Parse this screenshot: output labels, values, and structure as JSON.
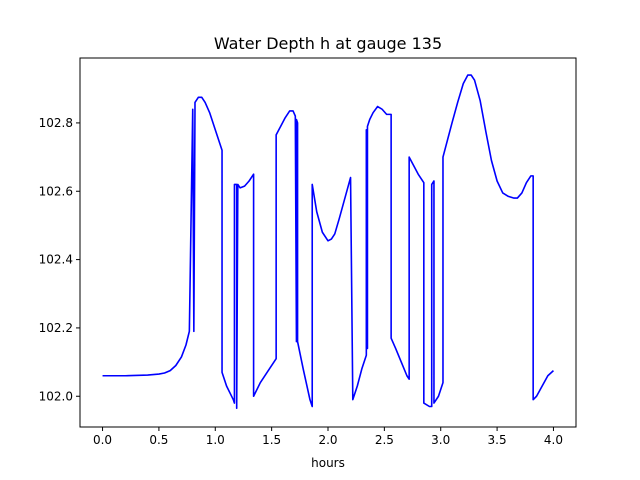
{
  "chart_data": {
    "type": "line",
    "title": "Water Depth h at gauge 135",
    "xlabel": "hours",
    "ylabel": "",
    "xlim": [
      -0.2,
      4.2
    ],
    "ylim": [
      101.91,
      102.99
    ],
    "xticks": [
      0.0,
      0.5,
      1.0,
      1.5,
      2.0,
      2.5,
      3.0,
      3.5,
      4.0
    ],
    "xtick_labels": [
      "0.0",
      "0.5",
      "1.0",
      "1.5",
      "2.0",
      "2.5",
      "3.0",
      "3.5",
      "4.0"
    ],
    "yticks": [
      102.0,
      102.2,
      102.4,
      102.6,
      102.8
    ],
    "ytick_labels": [
      "102.0",
      "102.2",
      "102.4",
      "102.6",
      "102.8"
    ],
    "grid": false,
    "line_color": "#0000ff",
    "series": [
      {
        "x": [
          0.0,
          0.2,
          0.4,
          0.5,
          0.55,
          0.6,
          0.65,
          0.7,
          0.74,
          0.77,
          0.8,
          0.81,
          0.81,
          0.82,
          0.82,
          0.85,
          0.88,
          0.91,
          0.95,
          1.0,
          1.06,
          1.06,
          1.1,
          1.16,
          1.17,
          1.17,
          1.19,
          1.19,
          1.2,
          1.22,
          1.26,
          1.3,
          1.34,
          1.34,
          1.4,
          1.46,
          1.54,
          1.54,
          1.58,
          1.62,
          1.66,
          1.69,
          1.71,
          1.72,
          1.72,
          1.73,
          1.73,
          1.78,
          1.84,
          1.86,
          1.86,
          1.9,
          1.95,
          2.0,
          2.03,
          2.06,
          2.1,
          2.15,
          2.2,
          2.22,
          2.22,
          2.26,
          2.3,
          2.34,
          2.34,
          2.35,
          2.35,
          2.37,
          2.4,
          2.44,
          2.48,
          2.52,
          2.56,
          2.56,
          2.6,
          2.65,
          2.7,
          2.72,
          2.72,
          2.76,
          2.8,
          2.85,
          2.85,
          2.9,
          2.92,
          2.92,
          2.94,
          2.94,
          2.98,
          3.02,
          3.02,
          3.1,
          3.15,
          3.2,
          3.24,
          3.27,
          3.3,
          3.35,
          3.4,
          3.45,
          3.5,
          3.55,
          3.6,
          3.65,
          3.68,
          3.72,
          3.76,
          3.8,
          3.82,
          3.82,
          3.85,
          3.9,
          3.95,
          4.0
        ],
        "y": [
          102.06,
          102.06,
          102.062,
          102.065,
          102.068,
          102.075,
          102.09,
          102.115,
          102.15,
          102.19,
          102.84,
          102.19,
          102.2,
          102.84,
          102.86,
          102.875,
          102.875,
          102.86,
          102.83,
          102.78,
          102.72,
          102.07,
          102.03,
          101.99,
          101.98,
          102.62,
          102.62,
          101.965,
          102.62,
          102.61,
          102.615,
          102.63,
          102.65,
          102.0,
          102.04,
          102.07,
          102.11,
          102.765,
          102.79,
          102.815,
          102.835,
          102.835,
          102.82,
          102.16,
          102.81,
          102.8,
          102.16,
          102.08,
          101.99,
          101.97,
          102.62,
          102.54,
          102.48,
          102.455,
          102.46,
          102.475,
          102.52,
          102.58,
          102.64,
          101.99,
          101.99,
          102.03,
          102.08,
          102.12,
          102.78,
          102.14,
          102.79,
          102.81,
          102.83,
          102.848,
          102.84,
          102.825,
          102.825,
          102.17,
          102.14,
          102.1,
          102.06,
          102.05,
          102.7,
          102.675,
          102.65,
          102.625,
          101.98,
          101.97,
          101.97,
          102.62,
          102.63,
          101.98,
          102.0,
          102.04,
          102.7,
          102.8,
          102.86,
          102.915,
          102.94,
          102.94,
          102.925,
          102.865,
          102.775,
          102.69,
          102.63,
          102.595,
          102.585,
          102.58,
          102.58,
          102.595,
          102.625,
          102.645,
          102.645,
          101.99,
          102.0,
          102.03,
          102.06,
          102.075
        ]
      }
    ]
  }
}
